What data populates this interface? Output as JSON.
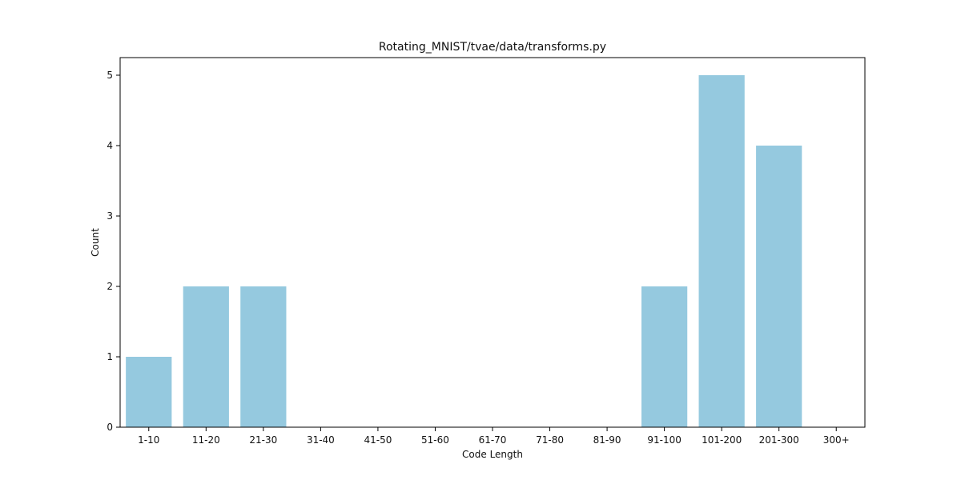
{
  "chart_data": {
    "type": "bar",
    "title": "Rotating_MNIST/tvae/data/transforms.py",
    "xlabel": "Code Length",
    "ylabel": "Count",
    "categories": [
      "1-10",
      "11-20",
      "21-30",
      "31-40",
      "41-50",
      "51-60",
      "61-70",
      "71-80",
      "81-90",
      "91-100",
      "101-200",
      "201-300",
      "300+"
    ],
    "values": [
      1,
      2,
      2,
      0,
      0,
      0,
      0,
      0,
      0,
      2,
      5,
      4,
      0
    ],
    "ylim": [
      0,
      5.25
    ],
    "yticks": [
      0,
      1,
      2,
      3,
      4,
      5
    ],
    "grid": false,
    "colors": {
      "bar": "#95c9df",
      "axis": "#000000"
    }
  }
}
